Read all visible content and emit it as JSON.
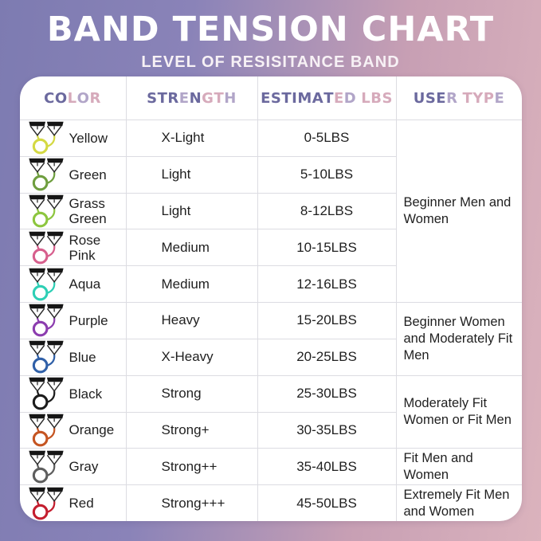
{
  "title": "BAND TENSION CHART",
  "subtitle": "LEVEL OF RESISITANCE BAND",
  "palette": {
    "background_left": "#7d7bb1",
    "background_right": "#dbb3bd",
    "card": "#ffffff",
    "text": "#1f1f1f",
    "grid_line": "#dcdce2",
    "header_purple": "#6b699e",
    "header_lavender": "#b1a5c8",
    "header_pink": "#d6aabb"
  },
  "table": {
    "headers": [
      {
        "text": "COLOR",
        "colors": [
          "#6b699e",
          "#6b699e",
          "#d6aabb",
          "#b1a5c8",
          "#d6aabb"
        ]
      },
      {
        "text": "STRENGTH",
        "colors": [
          "#6b699e",
          "#6b699e",
          "#6b699e",
          "#b1a5c8",
          "#6b699e",
          "#d6aabb",
          "#d6aabb",
          "#b1a5c8"
        ]
      },
      {
        "text": "ESTIMATED LBS",
        "colors": [
          "#6b699e",
          "#6b699e",
          "#6b699e",
          "#6b699e",
          "#6b699e",
          "#6b699e",
          "#6b699e",
          "#d6aabb",
          "#b1a5c8",
          "",
          "#d6aabb",
          "#d6aabb",
          "#d6aabb"
        ]
      },
      {
        "text": "USER TYPE",
        "colors": [
          "#6b699e",
          "#6b699e",
          "#6b699e",
          "#b1a5c8",
          "",
          "#d6aabb",
          "#d6aabb",
          "#d6aabb",
          "#b1a5c8"
        ]
      }
    ],
    "rows": [
      {
        "color_name": "Yellow",
        "band_hex": "#d4d943",
        "strength": "X-Light",
        "lbs": "0-5LBS"
      },
      {
        "color_name": "Green",
        "band_hex": "#6f9e3f",
        "strength": "Light",
        "lbs": "5-10LBS"
      },
      {
        "color_name": "Grass Green",
        "band_hex": "#8dc63f",
        "strength": "Light",
        "lbs": "8-12LBS"
      },
      {
        "color_name": "Rose Pink",
        "band_hex": "#d75f8d",
        "strength": "Medium",
        "lbs": "10-15LBS"
      },
      {
        "color_name": "Aqua",
        "band_hex": "#2ecfb5",
        "strength": "Medium",
        "lbs": "12-16LBS"
      },
      {
        "color_name": "Purple",
        "band_hex": "#8c3daf",
        "strength": "Heavy",
        "lbs": "15-20LBS"
      },
      {
        "color_name": "Blue",
        "band_hex": "#3060a8",
        "strength": "X-Heavy",
        "lbs": "20-25LBS"
      },
      {
        "color_name": "Black",
        "band_hex": "#1c1c1c",
        "strength": "Strong",
        "lbs": "25-30LBS"
      },
      {
        "color_name": "Orange",
        "band_hex": "#c55522",
        "strength": "Strong+",
        "lbs": "30-35LBS"
      },
      {
        "color_name": "Gray",
        "band_hex": "#5e5e5e",
        "strength": "Strong++",
        "lbs": "35-40LBS"
      },
      {
        "color_name": "Red",
        "band_hex": "#c41e2f",
        "strength": "Strong+++",
        "lbs": "45-50LBS"
      }
    ],
    "user_type_groups": [
      {
        "label": "Beginner Men and Women",
        "row_span": 5
      },
      {
        "label": "Beginner Women and Moderately Fit Men",
        "row_span": 2
      },
      {
        "label": "Moderately Fit Women or Fit Men",
        "row_span": 2
      },
      {
        "label": "Fit Men and Women",
        "row_span": 1
      },
      {
        "label": "Extremely Fit Men and Women",
        "row_span": 1
      }
    ]
  },
  "chart_data": {
    "type": "table",
    "title": "BAND TENSION CHART",
    "subtitle": "LEVEL OF RESISITANCE BAND",
    "columns": [
      "Color",
      "Strength",
      "Estimated LBS",
      "User Type"
    ],
    "rows": [
      [
        "Yellow",
        "X-Light",
        "0-5LBS",
        "Beginner Men and Women"
      ],
      [
        "Green",
        "Light",
        "5-10LBS",
        "Beginner Men and Women"
      ],
      [
        "Grass Green",
        "Light",
        "8-12LBS",
        "Beginner Men and Women"
      ],
      [
        "Rose Pink",
        "Medium",
        "10-15LBS",
        "Beginner Men and Women"
      ],
      [
        "Aqua",
        "Medium",
        "12-16LBS",
        "Beginner Men and Women"
      ],
      [
        "Purple",
        "Heavy",
        "15-20LBS",
        "Beginner Women and Moderately Fit Men"
      ],
      [
        "Blue",
        "X-Heavy",
        "20-25LBS",
        "Beginner Women and Moderately Fit Men"
      ],
      [
        "Black",
        "Strong",
        "25-30LBS",
        "Moderately Fit Women or Fit Men"
      ],
      [
        "Orange",
        "Strong+",
        "30-35LBS",
        "Moderately Fit Women or Fit Men"
      ],
      [
        "Gray",
        "Strong++",
        "35-40LBS",
        "Fit Men and Women"
      ],
      [
        "Red",
        "Strong+++",
        "45-50LBS",
        "Extremely Fit Men and Women"
      ]
    ]
  }
}
